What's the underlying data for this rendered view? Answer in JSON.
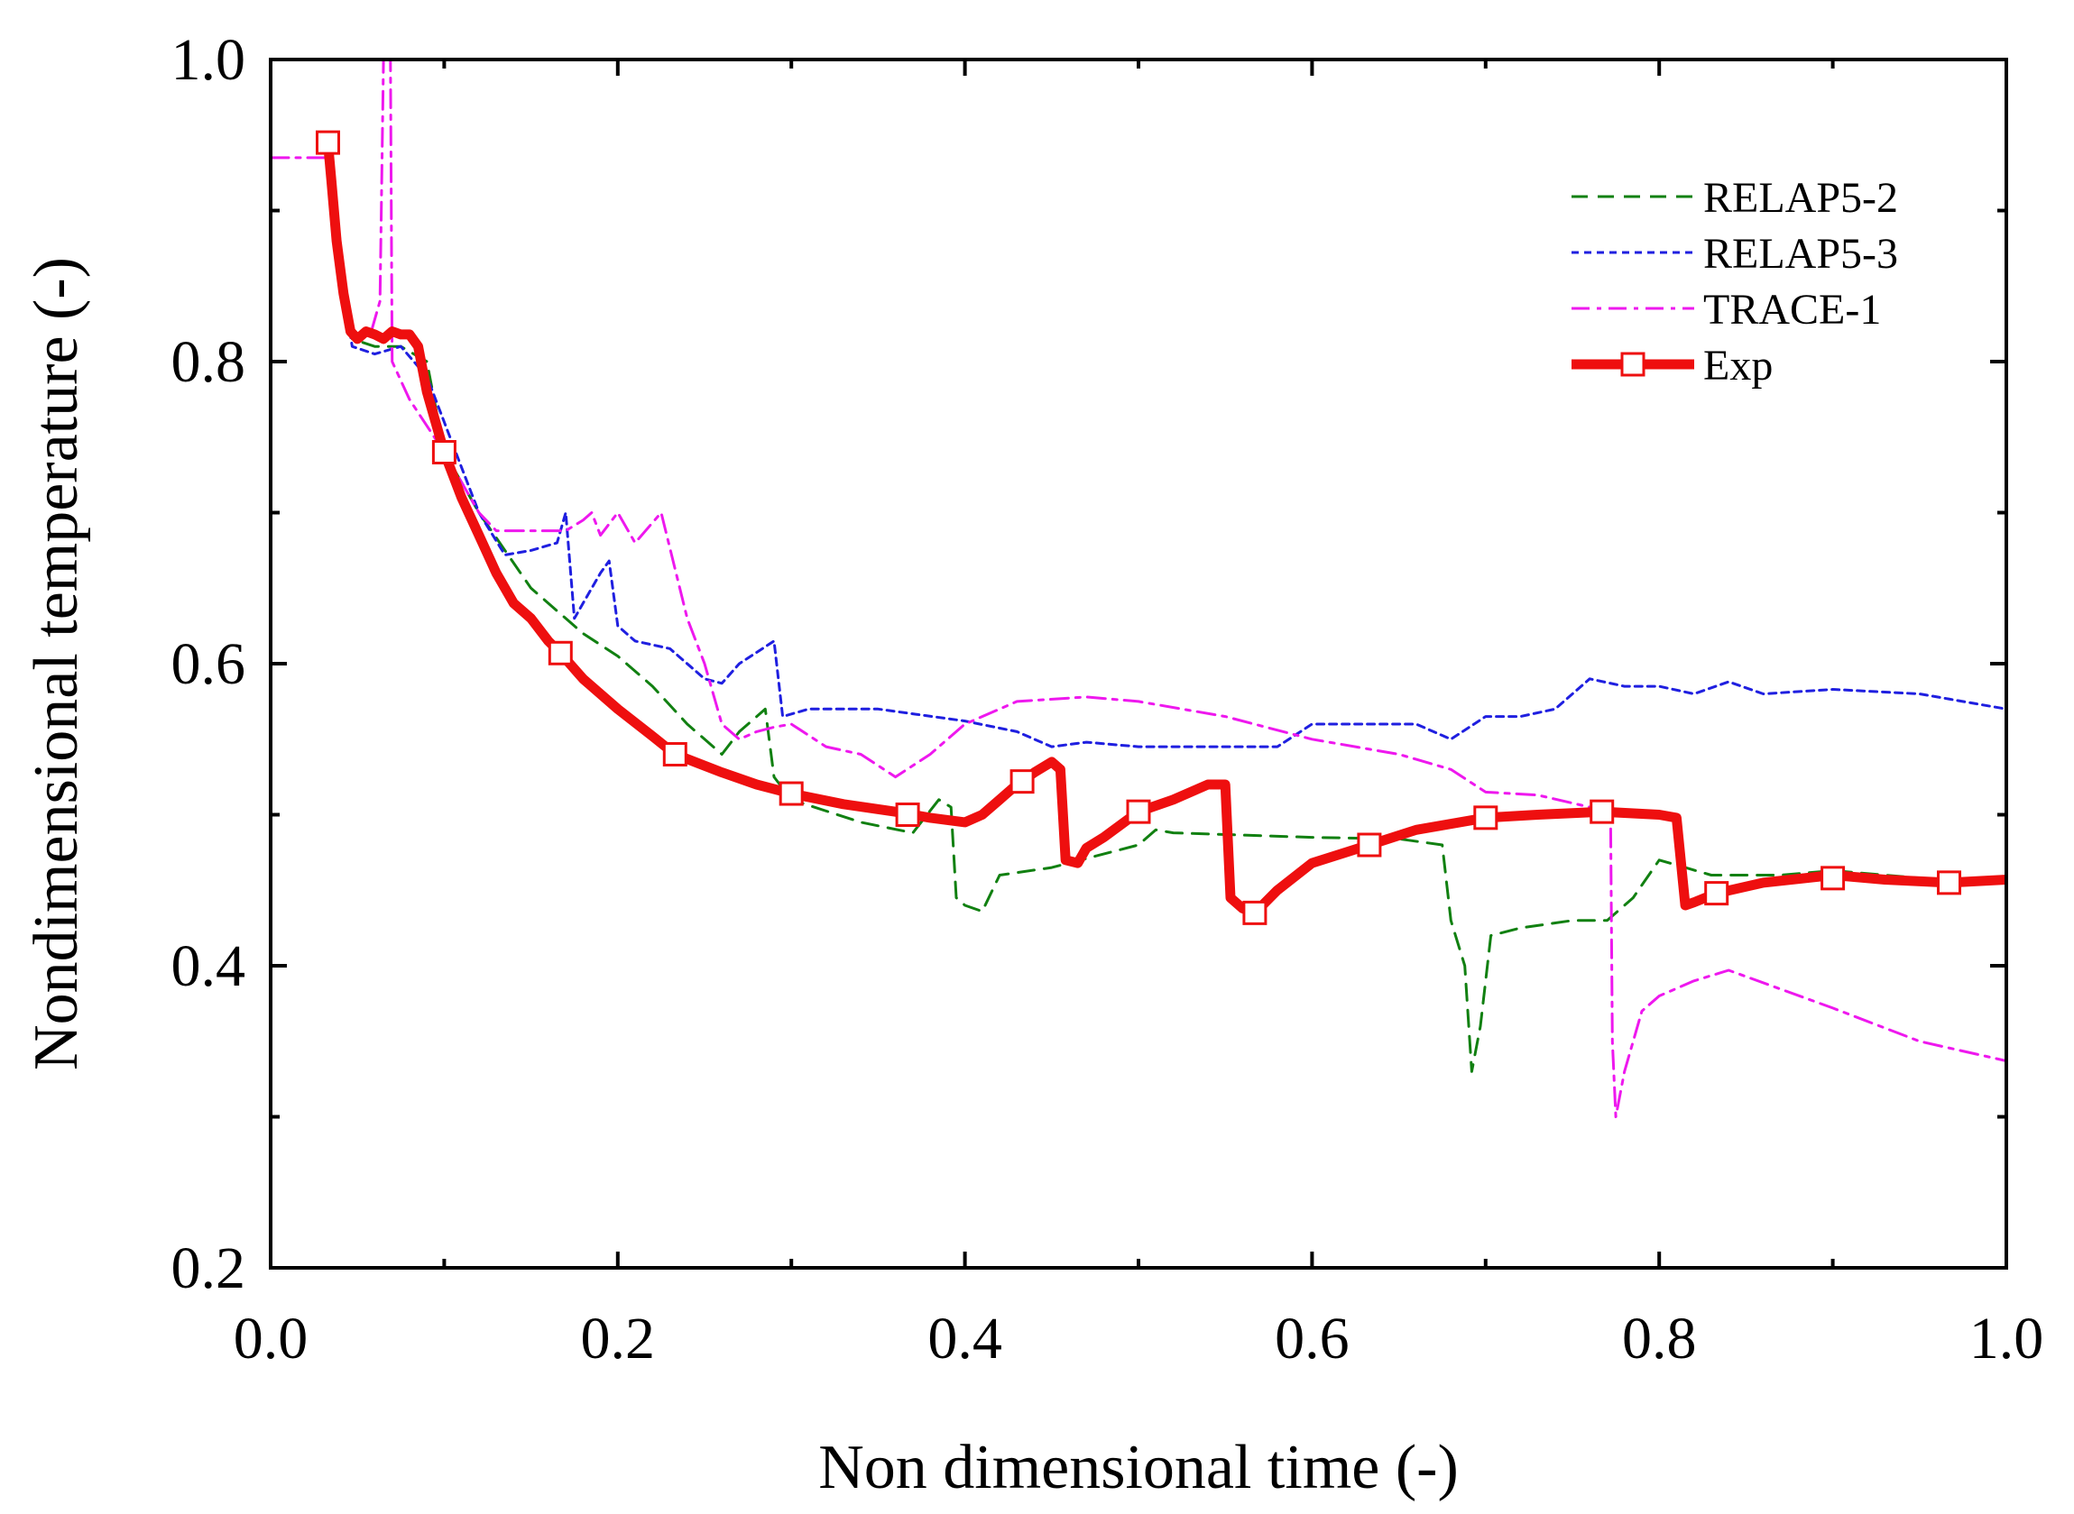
{
  "chart_data": {
    "type": "line",
    "title": "",
    "xlabel": "Non dimensional time (-)",
    "ylabel": "Nondimensional temperature (-)",
    "xlim": [
      0.0,
      1.0
    ],
    "ylim": [
      0.2,
      1.0
    ],
    "x_ticks": [
      0.0,
      0.2,
      0.4,
      0.6,
      0.8,
      1.0
    ],
    "x_tick_labels": [
      "0.0",
      "0.2",
      "0.4",
      "0.6",
      "0.8",
      "1.0"
    ],
    "y_ticks": [
      0.2,
      0.4,
      0.6,
      0.8,
      1.0
    ],
    "y_tick_labels": [
      "0.2",
      "0.4",
      "0.6",
      "0.8",
      "1.0"
    ],
    "grid": false,
    "legend_position": "top-right",
    "series": [
      {
        "name": "RELAP5-2",
        "color": "#118011",
        "style": "dashed",
        "points": [
          [
            0.033,
            0.945
          ],
          [
            0.04,
            0.86
          ],
          [
            0.047,
            0.815
          ],
          [
            0.06,
            0.81
          ],
          [
            0.075,
            0.81
          ],
          [
            0.09,
            0.8
          ],
          [
            0.1,
            0.74
          ],
          [
            0.12,
            0.7
          ],
          [
            0.15,
            0.65
          ],
          [
            0.18,
            0.62
          ],
          [
            0.2,
            0.605
          ],
          [
            0.22,
            0.585
          ],
          [
            0.24,
            0.56
          ],
          [
            0.26,
            0.54
          ],
          [
            0.27,
            0.555
          ],
          [
            0.285,
            0.57
          ],
          [
            0.29,
            0.525
          ],
          [
            0.3,
            0.51
          ],
          [
            0.34,
            0.495
          ],
          [
            0.37,
            0.488
          ],
          [
            0.385,
            0.51
          ],
          [
            0.392,
            0.505
          ],
          [
            0.395,
            0.445
          ],
          [
            0.4,
            0.44
          ],
          [
            0.41,
            0.436
          ],
          [
            0.42,
            0.46
          ],
          [
            0.45,
            0.465
          ],
          [
            0.5,
            0.48
          ],
          [
            0.51,
            0.49
          ],
          [
            0.52,
            0.488
          ],
          [
            0.6,
            0.485
          ],
          [
            0.65,
            0.484
          ],
          [
            0.675,
            0.48
          ],
          [
            0.68,
            0.43
          ],
          [
            0.688,
            0.4
          ],
          [
            0.692,
            0.33
          ],
          [
            0.697,
            0.36
          ],
          [
            0.703,
            0.42
          ],
          [
            0.72,
            0.425
          ],
          [
            0.75,
            0.43
          ],
          [
            0.77,
            0.43
          ],
          [
            0.785,
            0.445
          ],
          [
            0.8,
            0.47
          ],
          [
            0.815,
            0.465
          ],
          [
            0.83,
            0.46
          ],
          [
            0.87,
            0.46
          ],
          [
            0.9,
            0.463
          ],
          [
            0.95,
            0.458
          ],
          [
            1.0,
            0.455
          ]
        ]
      },
      {
        "name": "RELAP5-3",
        "color": "#1f1fe0",
        "style": "dotted",
        "points": [
          [
            0.033,
            0.945
          ],
          [
            0.04,
            0.86
          ],
          [
            0.047,
            0.81
          ],
          [
            0.06,
            0.805
          ],
          [
            0.075,
            0.81
          ],
          [
            0.09,
            0.79
          ],
          [
            0.1,
            0.76
          ],
          [
            0.11,
            0.73
          ],
          [
            0.12,
            0.7
          ],
          [
            0.135,
            0.672
          ],
          [
            0.15,
            0.675
          ],
          [
            0.165,
            0.68
          ],
          [
            0.17,
            0.7
          ],
          [
            0.175,
            0.63
          ],
          [
            0.18,
            0.64
          ],
          [
            0.19,
            0.66
          ],
          [
            0.195,
            0.668
          ],
          [
            0.2,
            0.625
          ],
          [
            0.21,
            0.615
          ],
          [
            0.23,
            0.61
          ],
          [
            0.25,
            0.59
          ],
          [
            0.26,
            0.587
          ],
          [
            0.27,
            0.6
          ],
          [
            0.29,
            0.615
          ],
          [
            0.295,
            0.565
          ],
          [
            0.31,
            0.57
          ],
          [
            0.35,
            0.57
          ],
          [
            0.4,
            0.562
          ],
          [
            0.43,
            0.555
          ],
          [
            0.45,
            0.545
          ],
          [
            0.47,
            0.548
          ],
          [
            0.5,
            0.545
          ],
          [
            0.55,
            0.545
          ],
          [
            0.58,
            0.545
          ],
          [
            0.6,
            0.56
          ],
          [
            0.63,
            0.56
          ],
          [
            0.66,
            0.56
          ],
          [
            0.68,
            0.55
          ],
          [
            0.7,
            0.565
          ],
          [
            0.72,
            0.565
          ],
          [
            0.74,
            0.57
          ],
          [
            0.76,
            0.59
          ],
          [
            0.78,
            0.585
          ],
          [
            0.8,
            0.585
          ],
          [
            0.82,
            0.58
          ],
          [
            0.84,
            0.588
          ],
          [
            0.86,
            0.58
          ],
          [
            0.9,
            0.583
          ],
          [
            0.95,
            0.58
          ],
          [
            1.0,
            0.57
          ]
        ]
      },
      {
        "name": "TRACE-1",
        "color": "#ee18ee",
        "style": "dash-dot",
        "points": [
          [
            0.0,
            0.935
          ],
          [
            0.033,
            0.935
          ],
          [
            0.038,
            0.9
          ],
          [
            0.045,
            0.83
          ],
          [
            0.05,
            0.815
          ],
          [
            0.058,
            0.82
          ],
          [
            0.063,
            0.84
          ],
          [
            0.065,
            1.0
          ],
          [
            0.067,
            1.01
          ],
          [
            0.069,
            1.0
          ],
          [
            0.07,
            0.8
          ],
          [
            0.08,
            0.775
          ],
          [
            0.1,
            0.74
          ],
          [
            0.12,
            0.7
          ],
          [
            0.13,
            0.688
          ],
          [
            0.14,
            0.688
          ],
          [
            0.17,
            0.688
          ],
          [
            0.18,
            0.695
          ],
          [
            0.185,
            0.7
          ],
          [
            0.19,
            0.685
          ],
          [
            0.2,
            0.7
          ],
          [
            0.21,
            0.68
          ],
          [
            0.225,
            0.7
          ],
          [
            0.24,
            0.63
          ],
          [
            0.25,
            0.6
          ],
          [
            0.26,
            0.56
          ],
          [
            0.27,
            0.55
          ],
          [
            0.28,
            0.555
          ],
          [
            0.29,
            0.558
          ],
          [
            0.3,
            0.56
          ],
          [
            0.32,
            0.545
          ],
          [
            0.34,
            0.54
          ],
          [
            0.36,
            0.525
          ],
          [
            0.38,
            0.54
          ],
          [
            0.4,
            0.56
          ],
          [
            0.43,
            0.575
          ],
          [
            0.47,
            0.578
          ],
          [
            0.5,
            0.575
          ],
          [
            0.55,
            0.565
          ],
          [
            0.6,
            0.55
          ],
          [
            0.65,
            0.54
          ],
          [
            0.68,
            0.53
          ],
          [
            0.7,
            0.515
          ],
          [
            0.73,
            0.513
          ],
          [
            0.76,
            0.505
          ],
          [
            0.772,
            0.5
          ],
          [
            0.773,
            0.35
          ],
          [
            0.775,
            0.3
          ],
          [
            0.78,
            0.33
          ],
          [
            0.79,
            0.37
          ],
          [
            0.8,
            0.38
          ],
          [
            0.82,
            0.39
          ],
          [
            0.84,
            0.397
          ],
          [
            0.9,
            0.372
          ],
          [
            0.95,
            0.35
          ],
          [
            1.0,
            0.337
          ]
        ]
      },
      {
        "name": "Exp",
        "color": "#ee0f0f",
        "style": "solid-thick",
        "marker": "open-square",
        "markers": [
          [
            0.033,
            0.945
          ],
          [
            0.1,
            0.74
          ],
          [
            0.167,
            0.607
          ],
          [
            0.233,
            0.54
          ],
          [
            0.3,
            0.514
          ],
          [
            0.367,
            0.5
          ],
          [
            0.433,
            0.522
          ],
          [
            0.5,
            0.502
          ],
          [
            0.567,
            0.435
          ],
          [
            0.633,
            0.48
          ],
          [
            0.7,
            0.498
          ],
          [
            0.767,
            0.502
          ],
          [
            0.833,
            0.448
          ],
          [
            0.9,
            0.458
          ],
          [
            0.967,
            0.455
          ]
        ],
        "points": [
          [
            0.033,
            0.945
          ],
          [
            0.035,
            0.92
          ],
          [
            0.038,
            0.88
          ],
          [
            0.042,
            0.845
          ],
          [
            0.046,
            0.82
          ],
          [
            0.05,
            0.815
          ],
          [
            0.055,
            0.82
          ],
          [
            0.06,
            0.818
          ],
          [
            0.065,
            0.815
          ],
          [
            0.07,
            0.82
          ],
          [
            0.075,
            0.818
          ],
          [
            0.08,
            0.818
          ],
          [
            0.085,
            0.81
          ],
          [
            0.09,
            0.78
          ],
          [
            0.095,
            0.76
          ],
          [
            0.1,
            0.74
          ],
          [
            0.11,
            0.71
          ],
          [
            0.12,
            0.685
          ],
          [
            0.13,
            0.66
          ],
          [
            0.14,
            0.64
          ],
          [
            0.15,
            0.63
          ],
          [
            0.16,
            0.615
          ],
          [
            0.167,
            0.607
          ],
          [
            0.18,
            0.59
          ],
          [
            0.2,
            0.57
          ],
          [
            0.22,
            0.552
          ],
          [
            0.233,
            0.54
          ],
          [
            0.26,
            0.528
          ],
          [
            0.28,
            0.52
          ],
          [
            0.3,
            0.514
          ],
          [
            0.33,
            0.507
          ],
          [
            0.36,
            0.502
          ],
          [
            0.38,
            0.498
          ],
          [
            0.4,
            0.495
          ],
          [
            0.41,
            0.5
          ],
          [
            0.42,
            0.51
          ],
          [
            0.43,
            0.52
          ],
          [
            0.44,
            0.528
          ],
          [
            0.45,
            0.535
          ],
          [
            0.455,
            0.53
          ],
          [
            0.458,
            0.47
          ],
          [
            0.465,
            0.468
          ],
          [
            0.47,
            0.478
          ],
          [
            0.48,
            0.485
          ],
          [
            0.5,
            0.502
          ],
          [
            0.52,
            0.51
          ],
          [
            0.54,
            0.52
          ],
          [
            0.55,
            0.52
          ],
          [
            0.553,
            0.445
          ],
          [
            0.56,
            0.438
          ],
          [
            0.567,
            0.435
          ],
          [
            0.58,
            0.45
          ],
          [
            0.6,
            0.468
          ],
          [
            0.633,
            0.48
          ],
          [
            0.66,
            0.49
          ],
          [
            0.7,
            0.498
          ],
          [
            0.73,
            0.5
          ],
          [
            0.767,
            0.502
          ],
          [
            0.8,
            0.5
          ],
          [
            0.81,
            0.498
          ],
          [
            0.815,
            0.44
          ],
          [
            0.82,
            0.442
          ],
          [
            0.833,
            0.448
          ],
          [
            0.86,
            0.455
          ],
          [
            0.9,
            0.46
          ],
          [
            0.93,
            0.457
          ],
          [
            0.967,
            0.455
          ],
          [
            1.0,
            0.457
          ]
        ]
      }
    ]
  }
}
